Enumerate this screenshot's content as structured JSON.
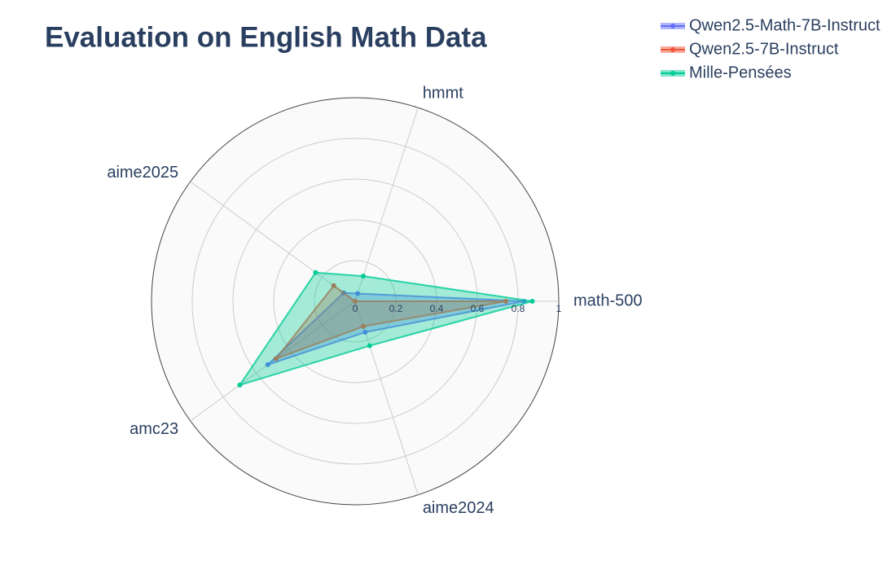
{
  "chart_data": {
    "type": "radar",
    "title": "Evaluation on English Math Data",
    "categories": [
      "math-500",
      "hmmt",
      "aime2025",
      "amc23",
      "aime2024"
    ],
    "series": [
      {
        "name": "Qwen2.5-Math-7B-Instruct",
        "color": "#636efa",
        "values": [
          0.83,
          0.04,
          0.07,
          0.53,
          0.16
        ]
      },
      {
        "name": "Qwen2.5-7B-Instruct",
        "color": "#EF553B",
        "values": [
          0.74,
          0,
          0.13,
          0.48,
          0.13
        ]
      },
      {
        "name": "Mille-Pensées",
        "color": "#00cc96",
        "values": [
          0.87,
          0.13,
          0.24,
          0.7,
          0.23
        ]
      }
    ],
    "rlim": [
      0,
      1
    ],
    "rticks": [
      0,
      0.2,
      0.4,
      0.6,
      0.8,
      1
    ],
    "grid": true,
    "legend": "top-right"
  }
}
